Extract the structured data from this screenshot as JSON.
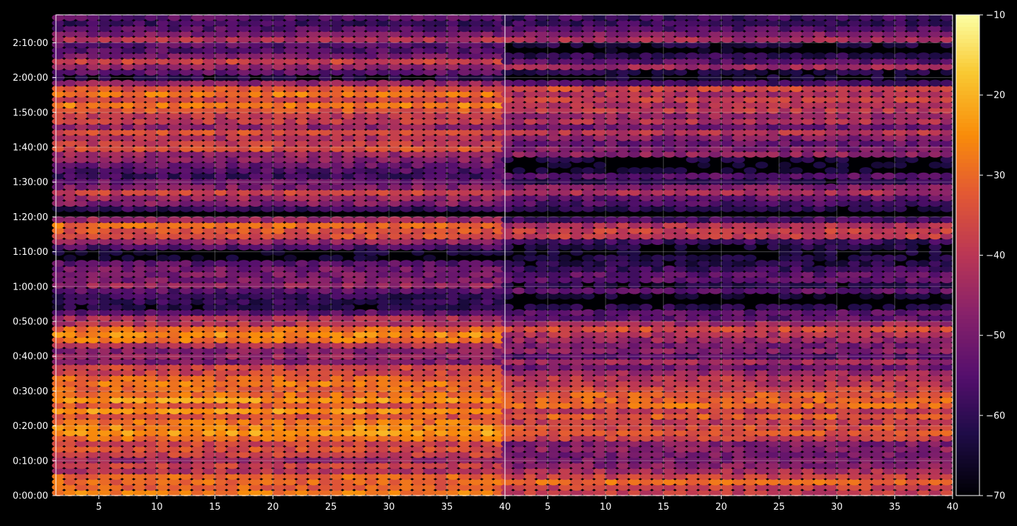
{
  "chart_data": {
    "type": "heatmap",
    "title": "",
    "xlabel": "",
    "ylabel": "",
    "grid": true,
    "colormap": "inferno",
    "background": "#000000",
    "y_time_seconds": {
      "min": 0,
      "max": 8280
    },
    "y_ticks": [
      "0:00:00",
      "0:10:00",
      "0:20:00",
      "0:30:00",
      "0:40:00",
      "0:50:00",
      "1:00:00",
      "1:10:00",
      "1:20:00",
      "1:30:00",
      "1:40:00",
      "1:50:00",
      "2:00:00",
      "2:10:00"
    ],
    "panels": [
      {
        "xlim": [
          1.3,
          40
        ],
        "x_ticks": [
          "5",
          "10",
          "15",
          "20",
          "25",
          "30",
          "35",
          "40"
        ],
        "x_count": 39,
        "y_count": 88,
        "offset_db": 0
      },
      {
        "xlim": [
          1.3,
          40
        ],
        "x_ticks": [
          "5",
          "10",
          "15",
          "20",
          "25",
          "30",
          "35",
          "40"
        ],
        "x_count": 39,
        "y_count": 88,
        "offset_db": -6
      }
    ],
    "colorbar": {
      "min": -70,
      "max": -10,
      "ticks": [
        "−10",
        "−20",
        "−30",
        "−40",
        "−50",
        "−60",
        "−70"
      ]
    },
    "row_level_profile_db": [
      {
        "t": 60,
        "db": -30
      },
      {
        "t": 300,
        "db": -31
      },
      {
        "t": 600,
        "db": -42
      },
      {
        "t": 780,
        "db": -42
      },
      {
        "t": 1080,
        "db": -30
      },
      {
        "t": 1500,
        "db": -30
      },
      {
        "t": 1800,
        "db": -29
      },
      {
        "t": 2160,
        "db": -42
      },
      {
        "t": 2460,
        "db": -44
      },
      {
        "t": 2760,
        "db": -31
      },
      {
        "t": 2940,
        "db": -33
      },
      {
        "t": 3000,
        "db": -40
      },
      {
        "t": 3300,
        "db": -66
      },
      {
        "t": 3600,
        "db": -50
      },
      {
        "t": 3900,
        "db": -52
      },
      {
        "t": 4200,
        "db": -66
      },
      {
        "t": 4500,
        "db": -35
      },
      {
        "t": 4700,
        "db": -34
      },
      {
        "t": 4860,
        "db": -67
      },
      {
        "t": 5160,
        "db": -40
      },
      {
        "t": 5520,
        "db": -56
      },
      {
        "t": 5700,
        "db": -57
      },
      {
        "t": 6000,
        "db": -39
      },
      {
        "t": 6300,
        "db": -41
      },
      {
        "t": 6660,
        "db": -34
      },
      {
        "t": 7020,
        "db": -31
      },
      {
        "t": 7200,
        "db": -62
      },
      {
        "t": 7380,
        "db": -43
      },
      {
        "t": 7500,
        "db": -42
      },
      {
        "t": 7740,
        "db": -63
      },
      {
        "t": 7800,
        "db": -34
      },
      {
        "t": 8040,
        "db": -54
      },
      {
        "t": 8250,
        "db": -55
      }
    ]
  }
}
